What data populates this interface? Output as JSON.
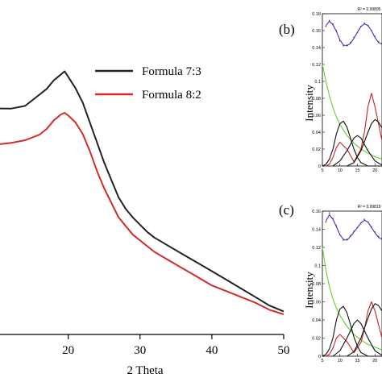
{
  "chart_data": [
    {
      "id": "a",
      "type": "line",
      "xlabel": "2 Theta",
      "ylabel": "",
      "xlim": [
        10.5,
        50
      ],
      "ylim": [
        0,
        1
      ],
      "xticks": [
        20,
        30,
        40,
        50
      ],
      "y_ticks_visible": false,
      "grid": false,
      "legend_position": "top-right",
      "series": [
        {
          "name": "Formula 7:3",
          "color": "#222222",
          "x": [
            10.5,
            12,
            14,
            16,
            17,
            18,
            19,
            19.5,
            20,
            21,
            22,
            23,
            24,
            25,
            26,
            27,
            28,
            29,
            30,
            31,
            32,
            34,
            36,
            38,
            40,
            42,
            44,
            46,
            48,
            50
          ],
          "y": [
            0.79,
            0.79,
            0.8,
            0.84,
            0.86,
            0.89,
            0.91,
            0.92,
            0.9,
            0.86,
            0.81,
            0.74,
            0.67,
            0.6,
            0.54,
            0.48,
            0.44,
            0.41,
            0.385,
            0.36,
            0.34,
            0.31,
            0.28,
            0.25,
            0.22,
            0.19,
            0.16,
            0.13,
            0.1,
            0.08
          ]
        },
        {
          "name": "Formula 8:2",
          "color": "#d42a2a",
          "x": [
            10.5,
            12,
            14,
            16,
            17,
            18,
            19,
            19.5,
            20,
            21,
            22,
            23,
            24,
            25,
            26,
            27,
            28,
            29,
            30,
            31,
            32,
            34,
            36,
            38,
            40,
            42,
            44,
            46,
            48,
            50
          ],
          "y": [
            0.665,
            0.67,
            0.68,
            0.7,
            0.72,
            0.75,
            0.77,
            0.775,
            0.765,
            0.74,
            0.7,
            0.64,
            0.57,
            0.51,
            0.46,
            0.41,
            0.38,
            0.35,
            0.33,
            0.31,
            0.29,
            0.26,
            0.23,
            0.2,
            0.17,
            0.15,
            0.13,
            0.11,
            0.085,
            0.07
          ]
        }
      ]
    },
    {
      "id": "b",
      "panel_label": "(b)",
      "type": "line",
      "ylabel": "Intensity",
      "annotation": "R² = 0.99895",
      "xlim": [
        5,
        22
      ],
      "ylim": [
        0,
        0.18
      ],
      "xticks": [
        5,
        10,
        15,
        20
      ],
      "xtick_labels": [
        "5",
        "10",
        "15",
        "20"
      ],
      "yticks": [
        0,
        0.02,
        0.04,
        0.06,
        0.08,
        0.1,
        0.12,
        0.14,
        0.16,
        0.18
      ],
      "ytick_labels": [
        "0",
        "0.02",
        "0.04",
        "0.06",
        "0.08",
        "0.1",
        "0.12",
        "0.14",
        "0.16",
        "0.18"
      ],
      "grid": false,
      "series": [
        {
          "color": "#d42a2a",
          "style": "points",
          "x": [
            6,
            7,
            8,
            9,
            10,
            11,
            12,
            13,
            14,
            15,
            16,
            17,
            18,
            19,
            20,
            21,
            22
          ],
          "y": [
            0.165,
            0.172,
            0.168,
            0.16,
            0.148,
            0.142,
            0.143,
            0.146,
            0.152,
            0.158,
            0.165,
            0.169,
            0.166,
            0.16,
            0.153,
            0.147,
            0.145
          ]
        },
        {
          "color": "#3333cc",
          "style": "line",
          "x": [
            6,
            7,
            8,
            9,
            10,
            11,
            12,
            13,
            14,
            15,
            16,
            17,
            18,
            19,
            20,
            21,
            22
          ],
          "y": [
            0.166,
            0.171,
            0.167,
            0.159,
            0.149,
            0.143,
            0.142,
            0.145,
            0.151,
            0.158,
            0.165,
            0.168,
            0.166,
            0.16,
            0.152,
            0.146,
            0.144
          ]
        },
        {
          "color": "#66cc33",
          "style": "line",
          "x": [
            5,
            6,
            7,
            8,
            9,
            10,
            12,
            14,
            16,
            18,
            20,
            22
          ],
          "y": [
            0.12,
            0.1,
            0.083,
            0.069,
            0.058,
            0.049,
            0.036,
            0.027,
            0.02,
            0.015,
            0.011,
            0.008
          ]
        },
        {
          "color": "#cc2222",
          "style": "line",
          "x": [
            6,
            7,
            8,
            9,
            10,
            12,
            14,
            16,
            17,
            18,
            19,
            20,
            22
          ],
          "y": [
            0.0,
            0.002,
            0.01,
            0.022,
            0.028,
            0.02,
            0.005,
            0.02,
            0.04,
            0.07,
            0.086,
            0.07,
            0.03
          ]
        },
        {
          "color": "#111111",
          "style": "line",
          "x": [
            5,
            6,
            7,
            8,
            9,
            10,
            11,
            12,
            13,
            14,
            15,
            16,
            18,
            20,
            22
          ],
          "y": [
            0.0,
            0.002,
            0.008,
            0.02,
            0.038,
            0.05,
            0.053,
            0.046,
            0.033,
            0.02,
            0.01,
            0.004,
            0.0,
            0.0,
            0.0
          ]
        },
        {
          "color": "#111111",
          "style": "line",
          "x": [
            8,
            10,
            12,
            14,
            15,
            16,
            18,
            20,
            22
          ],
          "y": [
            0.0,
            0.006,
            0.018,
            0.033,
            0.036,
            0.033,
            0.018,
            0.006,
            0.001
          ]
        },
        {
          "color": "#111111",
          "style": "line",
          "x": [
            12,
            14,
            16,
            18,
            19,
            20,
            21,
            22
          ],
          "y": [
            0.0,
            0.004,
            0.018,
            0.04,
            0.05,
            0.055,
            0.052,
            0.045
          ]
        }
      ]
    },
    {
      "id": "c",
      "panel_label": "(c)",
      "type": "line",
      "ylabel": "Intensity",
      "annotation": "R² = 0.99819",
      "xlim": [
        5,
        22
      ],
      "ylim": [
        0,
        0.16
      ],
      "xticks": [
        5,
        10,
        15,
        20
      ],
      "xtick_labels": [
        "5",
        "10",
        "15",
        "20"
      ],
      "yticks": [
        0,
        0.02,
        0.04,
        0.06,
        0.08,
        0.1,
        0.12,
        0.14,
        0.16
      ],
      "ytick_labels": [
        "0",
        "0.02",
        "0.04",
        "0.06",
        "0.08",
        "0.1",
        "0.12",
        "0.14",
        "0.16"
      ],
      "grid": false,
      "series": [
        {
          "color": "#d42a2a",
          "style": "points",
          "x": [
            6,
            7,
            8,
            9,
            10,
            11,
            12,
            13,
            14,
            15,
            16,
            17,
            18,
            19,
            20,
            21,
            22
          ],
          "y": [
            0.148,
            0.158,
            0.152,
            0.144,
            0.134,
            0.128,
            0.129,
            0.133,
            0.138,
            0.142,
            0.147,
            0.151,
            0.148,
            0.143,
            0.137,
            0.132,
            0.13
          ]
        },
        {
          "color": "#3333cc",
          "style": "line",
          "x": [
            6,
            7,
            8,
            9,
            10,
            11,
            12,
            13,
            14,
            15,
            16,
            17,
            18,
            19,
            20,
            21,
            22
          ],
          "y": [
            0.149,
            0.156,
            0.151,
            0.143,
            0.134,
            0.129,
            0.128,
            0.132,
            0.137,
            0.142,
            0.147,
            0.15,
            0.148,
            0.142,
            0.136,
            0.131,
            0.129
          ]
        },
        {
          "color": "#66cc33",
          "style": "line",
          "x": [
            5,
            6,
            7,
            8,
            9,
            10,
            12,
            14,
            16,
            18,
            20,
            22
          ],
          "y": [
            0.12,
            0.095,
            0.077,
            0.063,
            0.053,
            0.045,
            0.033,
            0.024,
            0.018,
            0.013,
            0.01,
            0.007
          ]
        },
        {
          "color": "#cc2222",
          "style": "line",
          "x": [
            6,
            7,
            8,
            9,
            10,
            12,
            14,
            16,
            17,
            18,
            19,
            20,
            22
          ],
          "y": [
            0.0,
            0.002,
            0.009,
            0.02,
            0.024,
            0.016,
            0.004,
            0.015,
            0.03,
            0.05,
            0.06,
            0.05,
            0.02
          ]
        },
        {
          "color": "#111111",
          "style": "line",
          "x": [
            5,
            6,
            7,
            8,
            9,
            10,
            11,
            12,
            13,
            14,
            15,
            16,
            18,
            20,
            22
          ],
          "y": [
            0.0,
            0.002,
            0.008,
            0.02,
            0.04,
            0.052,
            0.055,
            0.048,
            0.035,
            0.021,
            0.011,
            0.004,
            0.0,
            0.0,
            0.0
          ]
        },
        {
          "color": "#111111",
          "style": "line",
          "x": [
            8,
            10,
            12,
            14,
            15,
            16,
            18,
            20,
            22
          ],
          "y": [
            0.0,
            0.006,
            0.02,
            0.036,
            0.04,
            0.036,
            0.02,
            0.006,
            0.001
          ]
        },
        {
          "color": "#111111",
          "style": "line",
          "x": [
            12,
            14,
            16,
            18,
            19,
            20,
            21,
            22
          ],
          "y": [
            0.0,
            0.005,
            0.02,
            0.042,
            0.052,
            0.058,
            0.056,
            0.05
          ]
        }
      ]
    }
  ]
}
